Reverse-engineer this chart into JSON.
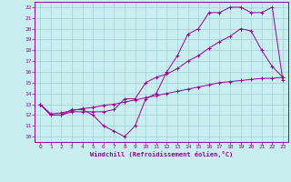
{
  "bg_color": "#c8eef0",
  "grid_color": "#9ecfd4",
  "line_color": "#990099",
  "xlabel": "Windchill (Refroidissement éolien,°C)",
  "xlim": [
    -0.5,
    23.5
  ],
  "ylim": [
    9.5,
    22.5
  ],
  "xticks": [
    0,
    1,
    2,
    3,
    4,
    5,
    6,
    7,
    8,
    9,
    10,
    11,
    12,
    13,
    14,
    15,
    16,
    17,
    18,
    19,
    20,
    21,
    22,
    23
  ],
  "yticks": [
    10,
    11,
    12,
    13,
    14,
    15,
    16,
    17,
    18,
    19,
    20,
    21,
    22
  ],
  "line1_x": [
    0,
    1,
    2,
    3,
    4,
    5,
    6,
    7,
    8,
    9,
    10,
    11,
    12,
    13,
    14,
    15,
    16,
    17,
    18,
    19,
    20,
    21,
    22,
    23
  ],
  "line1_y": [
    13,
    12,
    12,
    12.5,
    12.5,
    12,
    11,
    10.5,
    10,
    11,
    13.5,
    14,
    16,
    17.5,
    19.5,
    20,
    21.5,
    21.5,
    22,
    22,
    21.5,
    21.5,
    22,
    15.2
  ],
  "line2_x": [
    0,
    1,
    2,
    3,
    4,
    5,
    6,
    7,
    8,
    9,
    10,
    11,
    12,
    13,
    14,
    15,
    16,
    17,
    18,
    19,
    20,
    21,
    22,
    23
  ],
  "line2_y": [
    13,
    12,
    12,
    12.3,
    12.3,
    12.3,
    12.3,
    12.5,
    13.5,
    13.5,
    15,
    15.5,
    15.8,
    16.3,
    17,
    17.5,
    18.2,
    18.8,
    19.3,
    20,
    19.8,
    18,
    16.5,
    15.5
  ],
  "line3_x": [
    0,
    1,
    2,
    3,
    4,
    5,
    6,
    7,
    8,
    9,
    10,
    11,
    12,
    13,
    14,
    15,
    16,
    17,
    18,
    19,
    20,
    21,
    22,
    23
  ],
  "line3_y": [
    13,
    12.1,
    12.2,
    12.4,
    12.6,
    12.7,
    12.9,
    13.0,
    13.2,
    13.4,
    13.6,
    13.8,
    14.0,
    14.2,
    14.4,
    14.6,
    14.8,
    15.0,
    15.1,
    15.2,
    15.3,
    15.4,
    15.4,
    15.5
  ]
}
